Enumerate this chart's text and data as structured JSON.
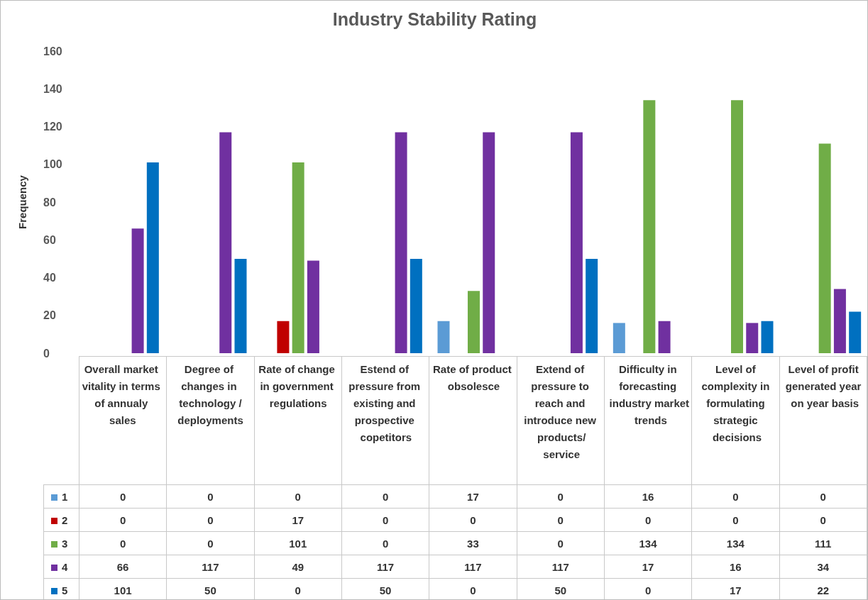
{
  "chart_data": {
    "type": "bar",
    "title": "Industry Stability Rating",
    "ylabel": "Frequency",
    "categories": [
      "Overall market vitality in terms of annualy sales",
      "Degree of changes in technology /deployments",
      "Rate of change in government regulations",
      "Estend of pressure from existing and prospective copetitors",
      "Rate of product obsolesce",
      "Extend of pressure to reach and introduce new products/service",
      "Difficulty in forecasting industry market trends",
      "Level of complexity in formulating strategic decisions",
      "Level of profit generated year on year basis"
    ],
    "series": [
      {
        "name": "1",
        "color": "#5b9bd5",
        "values": [
          0,
          0,
          0,
          0,
          17,
          0,
          16,
          0,
          0
        ]
      },
      {
        "name": "2",
        "color": "#c00000",
        "values": [
          0,
          0,
          17,
          0,
          0,
          0,
          0,
          0,
          0
        ]
      },
      {
        "name": "3",
        "color": "#70ad47",
        "values": [
          0,
          0,
          101,
          0,
          33,
          0,
          134,
          134,
          111
        ]
      },
      {
        "name": "4",
        "color": "#7030a0",
        "values": [
          66,
          117,
          49,
          117,
          117,
          117,
          17,
          16,
          34
        ]
      },
      {
        "name": "5",
        "color": "#0070c0",
        "values": [
          101,
          50,
          0,
          50,
          0,
          50,
          0,
          17,
          22
        ]
      }
    ],
    "ylim": [
      0,
      160
    ],
    "yticks": [
      0,
      20,
      40,
      60,
      80,
      100,
      120,
      140,
      160
    ],
    "grid": false,
    "legend": "bottom left",
    "data_labels": true
  }
}
